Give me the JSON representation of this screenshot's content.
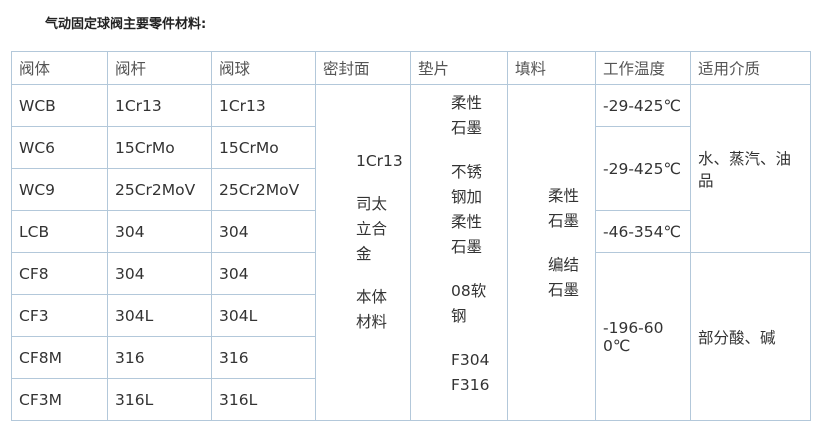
{
  "title": "气动固定球阀主要零件材料:",
  "headers": [
    "阀体",
    "阀杆",
    "阀球",
    "密封面",
    "垫片",
    "填料",
    "工作温度",
    "适用介质"
  ],
  "rows": [
    [
      "WCB",
      "1Cr13",
      "1Cr13"
    ],
    [
      "WC6",
      "15CrMo",
      "15CrMo"
    ],
    [
      "WC9",
      "25Cr2MoV",
      "25Cr2MoV"
    ],
    [
      "LCB",
      "304",
      "304"
    ],
    [
      "CF8",
      "304",
      "304"
    ],
    [
      "CF3",
      "304L",
      "304L"
    ],
    [
      "CF8M",
      "316",
      "316"
    ],
    [
      "CF3M",
      "316L",
      "316L"
    ]
  ],
  "sealing": [
    "1Cr13",
    "司太",
    "立合",
    "金",
    "本体",
    "材料"
  ],
  "gasket": [
    "柔性",
    "石墨",
    "不锈",
    "钢加",
    "柔性",
    "石墨",
    "08软",
    "钢",
    "F304",
    "F316"
  ],
  "packing": [
    "柔性",
    "石墨",
    "编结",
    "石墨"
  ],
  "temps": [
    "-29-425℃",
    "-29-425℃",
    "-46-354℃",
    "-196-60",
    "0℃"
  ],
  "media": [
    "水、蒸汽、油",
    "品",
    "部分酸、碱"
  ],
  "colors": {
    "border": "#b3c8da",
    "text": "#333333"
  }
}
